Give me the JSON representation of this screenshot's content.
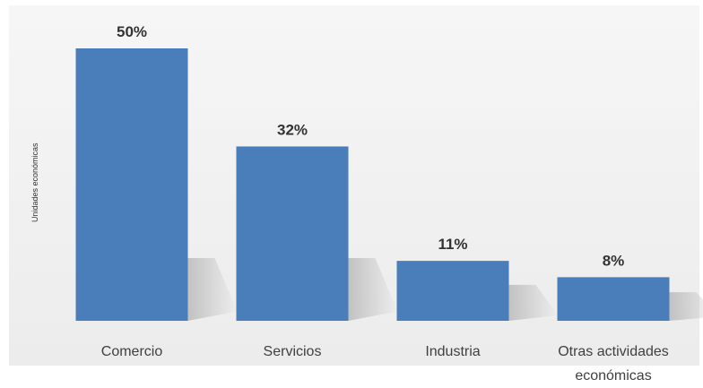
{
  "chart_data": {
    "type": "bar",
    "title": "",
    "xlabel": "",
    "ylabel": "Unidades económicas",
    "categories": [
      "Comercio",
      "Servicios",
      "Industria",
      "Otras actividades económicas"
    ],
    "category_lines": [
      [
        "Comercio"
      ],
      [
        "Servicios"
      ],
      [
        "Industria"
      ],
      [
        "Otras actividades",
        "económicas"
      ]
    ],
    "values": [
      50,
      32,
      11,
      8
    ],
    "value_labels": [
      "50%",
      "32%",
      "11%",
      "8%"
    ],
    "unit": "%",
    "ylim": [
      0,
      50
    ],
    "grid": false,
    "legend": "none"
  },
  "colors": {
    "bar": "#4a7ebb",
    "background_top": "#f6f6f6",
    "background_bottom": "#ececec",
    "text": "#333333",
    "label_text": "#404040",
    "shadow": "#bdbdbd"
  }
}
